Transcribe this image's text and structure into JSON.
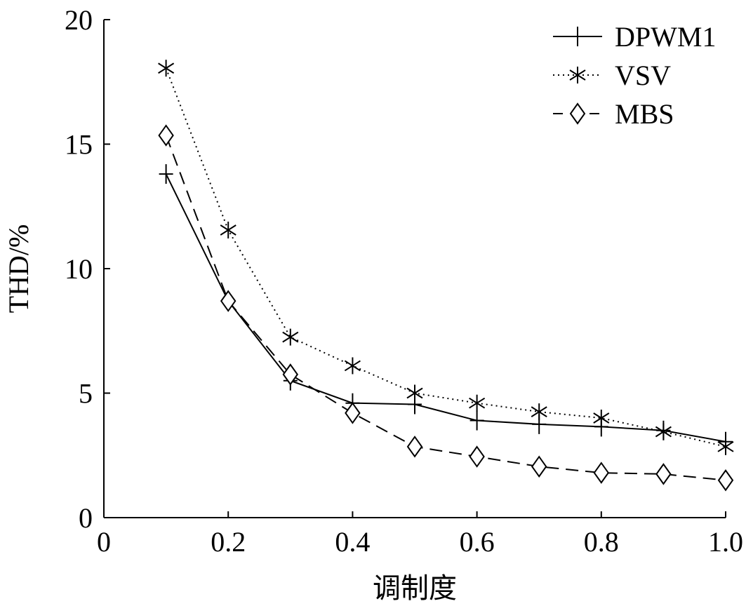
{
  "chart_data": {
    "type": "line",
    "xlabel": "调制度",
    "ylabel": "THD/%",
    "xlim": [
      0,
      1.0
    ],
    "ylim": [
      0,
      20
    ],
    "x_ticks": [
      "0",
      "0.2",
      "0.4",
      "0.6",
      "0.8",
      "1.0"
    ],
    "y_ticks": [
      "0",
      "5",
      "10",
      "15",
      "20"
    ],
    "legend_position": "top-right",
    "grid": false,
    "x": [
      0.1,
      0.2,
      0.3,
      0.4,
      0.5,
      0.6,
      0.7,
      0.8,
      0.9,
      1.0
    ],
    "series": [
      {
        "name": "DPWM1",
        "marker": "plus",
        "line": "solid",
        "values": [
          13.8,
          8.7,
          5.5,
          4.6,
          4.55,
          3.9,
          3.75,
          3.65,
          3.5,
          3.05
        ]
      },
      {
        "name": "VSV",
        "marker": "asterisk",
        "line": "dotted",
        "values": [
          18.05,
          11.55,
          7.25,
          6.1,
          5.0,
          4.6,
          4.25,
          4.0,
          3.45,
          2.85
        ]
      },
      {
        "name": "MBS",
        "marker": "diamond",
        "line": "dashed",
        "values": [
          15.35,
          8.7,
          5.75,
          4.2,
          2.85,
          2.45,
          2.05,
          1.8,
          1.75,
          1.5
        ]
      }
    ]
  }
}
